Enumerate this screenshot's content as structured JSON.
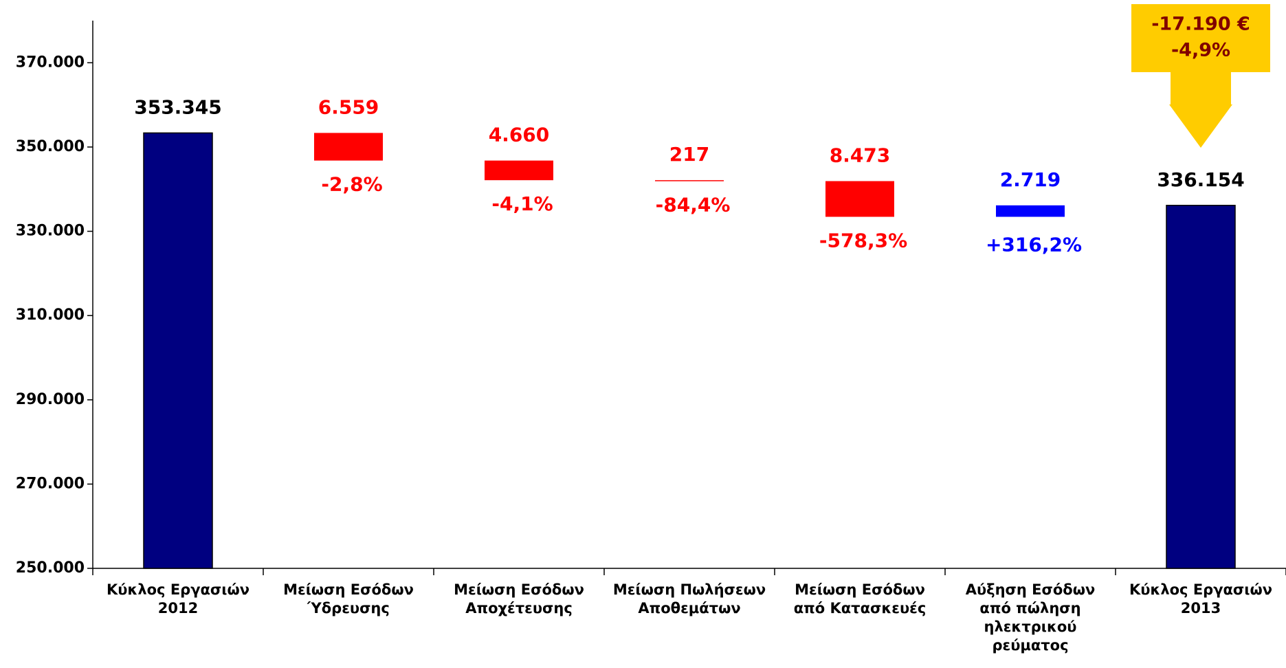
{
  "chart_data": {
    "type": "waterfall",
    "categories": [
      "Κύκλος Εργασιών\n2012",
      "Μείωση Εσόδων\nΎδρευσης",
      "Μείωση Εσόδων\nΑποχέτευσης",
      "Μείωση Πωλήσεων\nΑποθεμάτων",
      "Μείωση Εσόδων\nαπό Κατασκευές",
      "Αύξηση Εσόδων\nαπό πώληση\nηλεκτρικού\nρεύματος",
      "Κύκλος Εργασιών\n2013"
    ],
    "values": [
      353345,
      -6559,
      -4660,
      -217,
      -8473,
      2719,
      336154
    ],
    "value_labels": [
      "353.345",
      "6.559",
      "4.660",
      "217",
      "8.473",
      "2.719",
      "336.154"
    ],
    "measure": [
      "total",
      "relative",
      "relative",
      "relative",
      "relative",
      "relative",
      "total"
    ],
    "colors": [
      "#000080",
      "#ff0000",
      "#ff0000",
      "#ff0000",
      "#ff0000",
      "#0000ff",
      "#000080"
    ],
    "label_colors": [
      "#000000",
      "#ff0000",
      "#ff0000",
      "#ff0000",
      "#ff0000",
      "#0000ff",
      "#000000"
    ],
    "pct_labels": [
      null,
      "-2,8%",
      "-4,1%",
      "-84,4%",
      "-578,3%",
      "+316,2%",
      null
    ],
    "annotation": {
      "lines": [
        "-17.190 €",
        "-4,9%"
      ],
      "color": "#ffcc00",
      "text_color": "#800000"
    },
    "ylim": [
      250000,
      380000
    ],
    "yticks": [
      {
        "value": 250000,
        "label": "250.000"
      },
      {
        "value": 270000,
        "label": "270.000"
      },
      {
        "value": 290000,
        "label": "290.000"
      },
      {
        "value": 310000,
        "label": "310.000"
      },
      {
        "value": 330000,
        "label": "330.000"
      },
      {
        "value": 350000,
        "label": "350.000"
      },
      {
        "value": 370000,
        "label": "370.000"
      }
    ]
  }
}
